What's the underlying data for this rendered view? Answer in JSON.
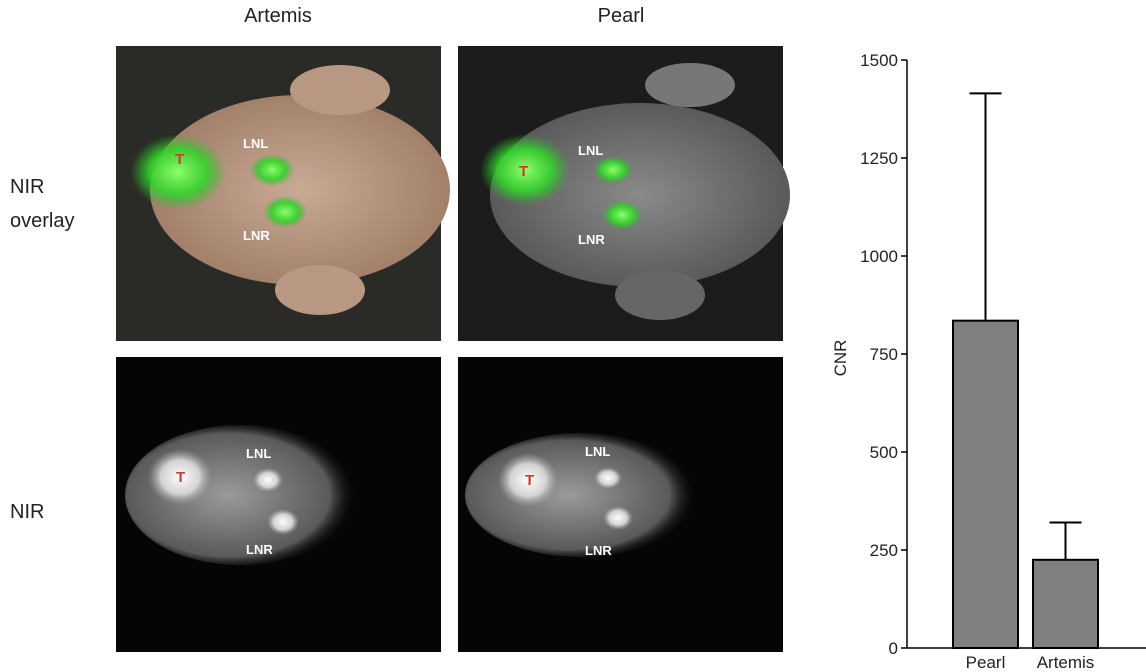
{
  "column_titles": [
    "Artemis",
    "Pearl"
  ],
  "row_titles": [
    "NIR overlay",
    "NIR"
  ],
  "image_labels": {
    "tumor": "T",
    "left_node": "LNL",
    "right_node": "LNR"
  },
  "chart_data": {
    "type": "bar",
    "ylabel": "CNR",
    "categories": [
      "Pearl",
      "Artemis"
    ],
    "values": [
      835,
      225
    ],
    "errors": [
      580,
      95
    ],
    "color": "#808080",
    "ylim": [
      0,
      1500
    ],
    "yticks": [
      0,
      250,
      500,
      750,
      1000,
      1250,
      1500
    ]
  }
}
